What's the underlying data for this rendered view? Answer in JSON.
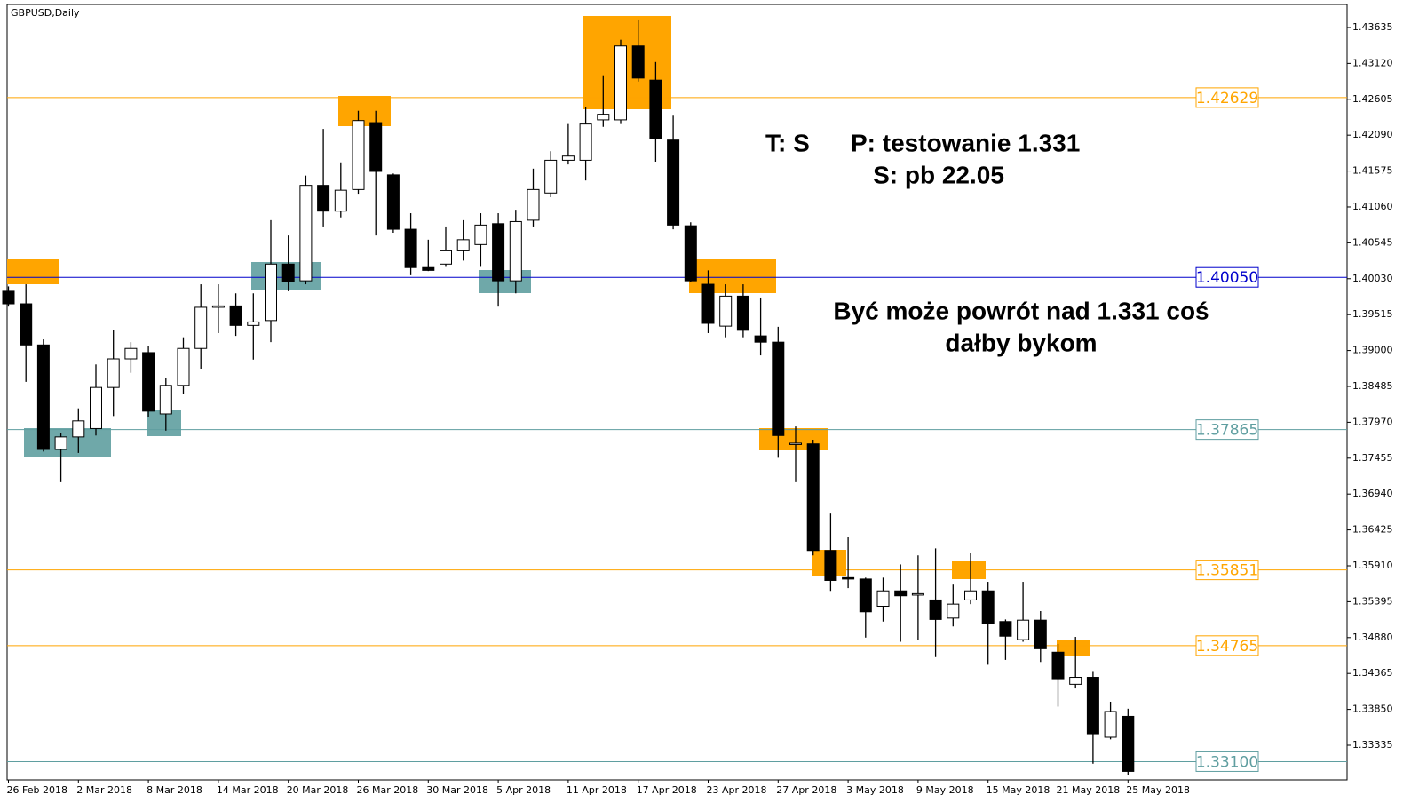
{
  "chart_data": {
    "type": "candlestick",
    "title": "GBPUSD,Daily",
    "annotations": [
      "T: S",
      "P: testowanie 1.331",
      "S: pb 22.05",
      "Być może powrót nad 1.331 coś",
      "dałby bykom"
    ],
    "categories": [
      "26 Feb 2018",
      null,
      null,
      null,
      "2 Mar 2018",
      null,
      null,
      null,
      "8 Mar 2018",
      null,
      null,
      null,
      "14 Mar 2018",
      null,
      null,
      null,
      "20 Mar 2018",
      null,
      null,
      null,
      "26 Mar 2018",
      null,
      null,
      null,
      "30 Mar 2018",
      null,
      null,
      null,
      "5 Apr 2018",
      null,
      null,
      null,
      "11 Apr 2018",
      null,
      null,
      null,
      "17 Apr 2018",
      null,
      null,
      null,
      "23 Apr 2018",
      null,
      null,
      null,
      "27 Apr 2018",
      null,
      null,
      null,
      "3 May 2018",
      null,
      null,
      null,
      "9 May 2018",
      null,
      null,
      null,
      "15 May 2018",
      null,
      null,
      null,
      "21 May 2018",
      null,
      null,
      null,
      "25 May 2018"
    ],
    "open": [
      1.3985,
      1.3967,
      1.3908,
      1.3758,
      1.3776,
      1.3788,
      1.3847,
      1.3888,
      1.3897,
      1.3809,
      1.385,
      1.3903,
      1.3962,
      1.3964,
      1.3936,
      1.3943,
      1.4024,
      1.4,
      1.4137,
      1.41,
      1.4131,
      1.4227,
      1.4152,
      1.4074,
      1.4019,
      1.4024,
      1.4043,
      1.4052,
      1.4082,
      1.4,
      1.4087,
      1.4126,
      1.4173,
      1.4173,
      1.4231,
      1.4231,
      1.4337,
      1.4288,
      1.4202,
      1.4079,
      1.3995,
      1.3935,
      1.3978,
      1.3921,
      1.3912,
      1.3766,
      1.3766,
      1.3613,
      1.3574,
      1.3572,
      1.3533,
      1.3555,
      1.3549,
      1.3542,
      1.3516,
      1.3542,
      1.3555,
      1.3511,
      1.3485,
      1.3513,
      1.3467,
      1.3421,
      1.3431,
      1.3345,
      1.3375
    ],
    "high": [
      1.3992,
      1.3995,
      1.3916,
      1.3782,
      1.3817,
      1.388,
      1.3929,
      1.3912,
      1.3906,
      1.3861,
      1.3919,
      1.3995,
      1.3995,
      1.3982,
      1.3982,
      1.4087,
      1.4065,
      1.4151,
      1.4218,
      1.417,
      1.4244,
      1.4244,
      1.4154,
      1.4097,
      1.4059,
      1.4078,
      1.4087,
      1.4097,
      1.4097,
      1.4102,
      1.4161,
      1.4186,
      1.4225,
      1.425,
      1.4295,
      1.4346,
      1.4375,
      1.4314,
      1.4237,
      1.4084,
      1.4015,
      1.3995,
      1.3995,
      1.3976,
      1.3934,
      1.3791,
      1.3772,
      1.3666,
      1.3632,
      1.3574,
      1.3574,
      1.3593,
      1.3606,
      1.3616,
      1.3564,
      1.3609,
      1.3568,
      1.3514,
      1.3568,
      1.3526,
      1.3479,
      1.3489,
      1.344,
      1.3396,
      1.3386
    ],
    "low": [
      1.3963,
      1.3855,
      1.3755,
      1.3711,
      1.3753,
      1.3778,
      1.3806,
      1.3868,
      1.3804,
      1.3785,
      1.3838,
      1.3874,
      1.3925,
      1.3921,
      1.3887,
      1.3912,
      1.3985,
      1.3995,
      1.4078,
      1.4091,
      1.4125,
      1.4065,
      1.4069,
      1.4008,
      1.4014,
      1.402,
      1.4029,
      1.402,
      1.3963,
      1.3982,
      1.4078,
      1.412,
      1.4167,
      1.4144,
      1.4221,
      1.4225,
      1.4286,
      1.4171,
      1.4074,
      1.3998,
      1.3925,
      1.3919,
      1.3919,
      1.3893,
      1.3746,
      1.3711,
      1.3606,
      1.3555,
      1.3559,
      1.3488,
      1.3511,
      1.3482,
      1.3485,
      1.346,
      1.3504,
      1.3536,
      1.3449,
      1.3456,
      1.3482,
      1.3453,
      1.3389,
      1.3415,
      1.3307,
      1.3342,
      1.3291
    ],
    "close": [
      1.3967,
      1.3908,
      1.3758,
      1.3776,
      1.3799,
      1.3847,
      1.3888,
      1.3903,
      1.3813,
      1.385,
      1.3903,
      1.3962,
      1.3964,
      1.3936,
      1.3941,
      1.4024,
      1.3999,
      1.4137,
      1.41,
      1.413,
      1.423,
      1.4157,
      1.4074,
      1.4019,
      1.4015,
      1.4043,
      1.4059,
      1.408,
      1.4,
      1.4085,
      1.4131,
      1.4173,
      1.4179,
      1.4225,
      1.4239,
      1.4337,
      1.4291,
      1.4204,
      1.408,
      1.4,
      1.3939,
      1.3978,
      1.3929,
      1.3912,
      1.3778,
      1.3767,
      1.3613,
      1.357,
      1.3572,
      1.3525,
      1.3555,
      1.3548,
      1.3551,
      1.3514,
      1.3536,
      1.3555,
      1.3508,
      1.349,
      1.3513,
      1.3472,
      1.3429,
      1.3431,
      1.335,
      1.3382,
      1.3296
    ],
    "up_color": "#ffffff",
    "down_color": "#000000",
    "ylim": [
      1.32838,
      1.43966
    ],
    "yticks": [
      1.43635,
      {
        "value": 1.4312,
        "label": "1.43120"
      },
      1.42605,
      {
        "value": 1.4209,
        "label": "1.42090"
      },
      1.41575,
      {
        "value": 1.4106,
        "label": "1.41060"
      },
      1.40545,
      {
        "value": 1.4003,
        "label": "1.40030"
      },
      1.39515,
      {
        "value": 1.39,
        "label": "1.39000"
      },
      1.38485,
      {
        "value": 1.3797,
        "label": "1.37970"
      },
      1.37455,
      {
        "value": 1.3694,
        "label": "1.36940"
      },
      1.36425,
      {
        "value": 1.3591,
        "label": "1.35910"
      },
      1.35395,
      {
        "value": 1.3488,
        "label": "1.34880"
      },
      1.34365,
      {
        "value": 1.3385,
        "label": "1.33850"
      },
      1.33335
    ],
    "levels": [
      {
        "value": 1.42629,
        "color": "#ffa500"
      },
      {
        "value": 1.4005,
        "label": "1.40050",
        "color": "#0000cc"
      },
      {
        "value": 1.37865,
        "color": "#5f9ea0"
      },
      {
        "value": 1.35851,
        "color": "#ffa500"
      },
      {
        "value": 1.34765,
        "color": "#ffa500"
      },
      {
        "value": 1.331,
        "label": "1.33100",
        "color": "#5f9ea0"
      }
    ]
  }
}
